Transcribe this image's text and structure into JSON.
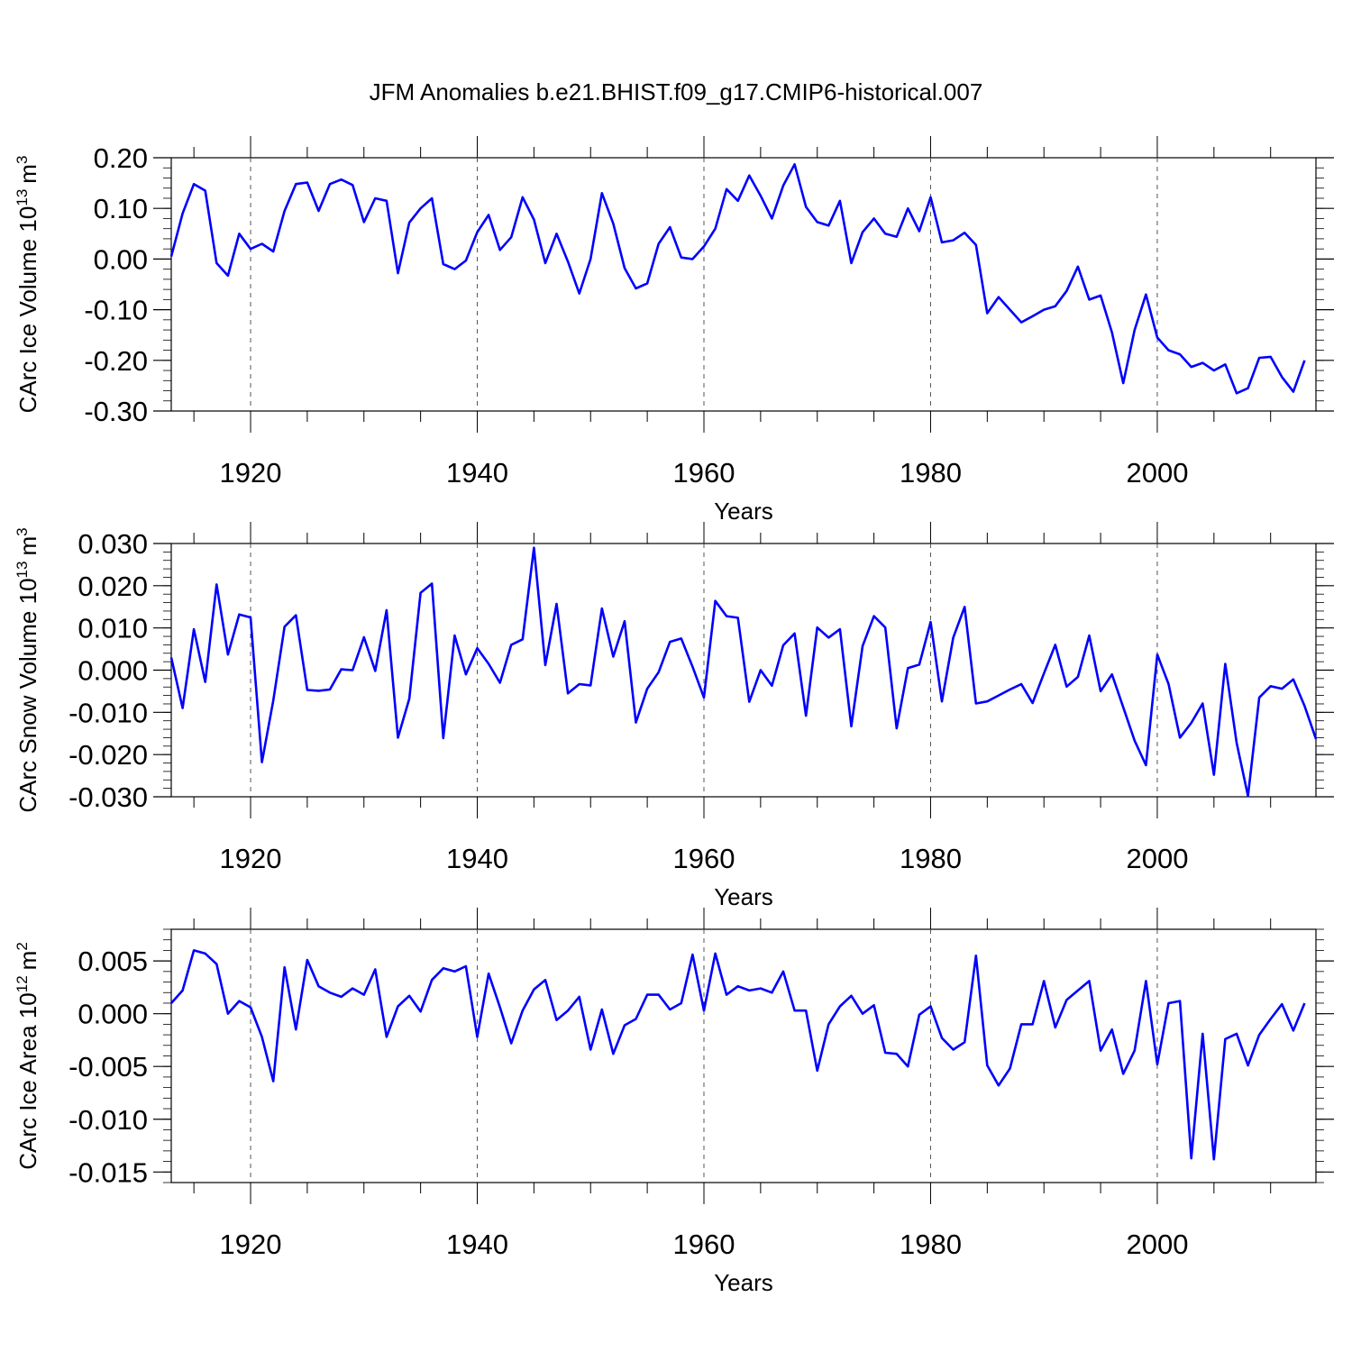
{
  "figure": {
    "title": "JFM Anomalies b.e21.BHIST.f09_g17.CMIP6-historical.007"
  },
  "chart_data": [
    {
      "type": "line",
      "title": "JFM Anomalies b.e21.BHIST.f09_g17.CMIP6-historical.007",
      "xlabel": "Years",
      "ylabel_main": "CArc Ice Volume 10",
      "ylabel_exp": "13",
      "ylabel_unit": "m",
      "ylabel_unit_exp": "3",
      "xlim": [
        1913,
        2014
      ],
      "ylim": [
        -0.3,
        0.2
      ],
      "xticks": [
        1920,
        1940,
        1960,
        1980,
        2000
      ],
      "xtick_labels": [
        "1920",
        "1940",
        "1960",
        "1980",
        "2000"
      ],
      "yticks": [
        0.2,
        0.1,
        0.0,
        -0.1,
        -0.2,
        -0.3
      ],
      "ytick_labels": [
        "0.20",
        "0.10",
        "0.00",
        "-0.10",
        "-0.20",
        "-0.30"
      ],
      "y_minor_step": 0.02,
      "line_color": "#0000ff",
      "x_start": 1913,
      "values": [
        0.005,
        0.09,
        0.148,
        0.135,
        -0.008,
        -0.033,
        0.05,
        0.02,
        0.03,
        0.015,
        0.095,
        0.148,
        0.151,
        0.095,
        0.148,
        0.157,
        0.146,
        0.073,
        0.12,
        0.115,
        -0.028,
        0.072,
        0.1,
        0.12,
        -0.01,
        -0.02,
        -0.003,
        0.053,
        0.087,
        0.018,
        0.043,
        0.122,
        0.078,
        -0.008,
        0.05,
        -0.005,
        -0.068,
        0.0,
        0.13,
        0.07,
        -0.018,
        -0.058,
        -0.048,
        0.03,
        0.063,
        0.003,
        0.0,
        0.025,
        0.06,
        0.138,
        0.115,
        0.165,
        0.125,
        0.08,
        0.145,
        0.187,
        0.103,
        0.073,
        0.066,
        0.115,
        -0.008,
        0.053,
        0.08,
        0.05,
        0.044,
        0.1,
        0.055,
        0.122,
        0.033,
        0.037,
        0.052,
        0.028,
        -0.107,
        -0.075,
        -0.1,
        -0.125,
        -0.113,
        -0.1,
        -0.093,
        -0.063,
        -0.015,
        -0.08,
        -0.072,
        -0.145,
        -0.245,
        -0.14,
        -0.07,
        -0.155,
        -0.18,
        -0.188,
        -0.213,
        -0.205,
        -0.22,
        -0.208,
        -0.265,
        -0.255,
        -0.195,
        -0.193,
        -0.233,
        -0.262,
        -0.2
      ]
    },
    {
      "type": "line",
      "xlabel": "Years",
      "ylabel_main": "CArc Snow Volume 10",
      "ylabel_exp": "13",
      "ylabel_unit": "m",
      "ylabel_unit_exp": "3",
      "xlim": [
        1913,
        2014
      ],
      "ylim": [
        -0.03,
        0.03
      ],
      "xticks": [
        1920,
        1940,
        1960,
        1980,
        2000
      ],
      "xtick_labels": [
        "1920",
        "1940",
        "1960",
        "1980",
        "2000"
      ],
      "yticks": [
        0.03,
        0.02,
        0.01,
        0.0,
        -0.01,
        -0.02,
        -0.03
      ],
      "ytick_labels": [
        "0.030",
        "0.020",
        "0.010",
        "0.000",
        "-0.010",
        "-0.020",
        "-0.030"
      ],
      "y_minor_step": 0.002,
      "line_color": "#0000ff",
      "x_start": 1913,
      "values": [
        0.003,
        -0.009,
        0.0097,
        -0.0028,
        0.0203,
        0.0037,
        0.0132,
        0.0125,
        -0.0218,
        -0.0072,
        0.0103,
        0.013,
        -0.0047,
        -0.0049,
        -0.0046,
        0.0002,
        0.0,
        0.0078,
        -0.0002,
        0.0142,
        -0.016,
        -0.0068,
        0.0183,
        0.0205,
        -0.0161,
        0.0082,
        -0.001,
        0.0052,
        0.0015,
        -0.003,
        0.006,
        0.0073,
        0.029,
        0.0012,
        0.0157,
        -0.0055,
        -0.0033,
        -0.0036,
        0.0146,
        0.0032,
        0.0116,
        -0.0124,
        -0.0044,
        -0.0005,
        0.0067,
        0.0075,
        0.0008,
        -0.0065,
        0.0164,
        0.0128,
        0.0124,
        -0.0075,
        0.0,
        -0.0037,
        0.0059,
        0.0087,
        -0.0108,
        0.0101,
        0.0077,
        0.0097,
        -0.0133,
        0.0057,
        0.0128,
        0.0101,
        -0.0138,
        0.0005,
        0.0013,
        0.0114,
        -0.0074,
        0.0077,
        0.015,
        -0.0079,
        -0.0074,
        -0.006,
        -0.0046,
        -0.0033,
        -0.0078,
        -0.0008,
        0.006,
        -0.0039,
        -0.0016,
        0.0082,
        -0.005,
        -0.001,
        -0.0088,
        -0.0167,
        -0.0225,
        0.0037,
        -0.0033,
        -0.016,
        -0.0125,
        -0.0079,
        -0.0248,
        0.0015,
        -0.0172,
        -0.0298,
        -0.0065,
        -0.0038,
        -0.0044,
        -0.0022,
        -0.0085,
        -0.0163
      ]
    },
    {
      "type": "line",
      "xlabel": "Years",
      "ylabel_main": "CArc Ice Area 10",
      "ylabel_exp": "12",
      "ylabel_unit": "m",
      "ylabel_unit_exp": "2",
      "xlim": [
        1913,
        2014
      ],
      "ylim": [
        -0.016,
        0.008
      ],
      "xticks": [
        1920,
        1940,
        1960,
        1980,
        2000
      ],
      "xtick_labels": [
        "1920",
        "1940",
        "1960",
        "1980",
        "2000"
      ],
      "yticks": [
        0.005,
        0.0,
        -0.005,
        -0.01,
        -0.015
      ],
      "ytick_labels": [
        "0.005",
        "0.000",
        "-0.005",
        "-0.010",
        "-0.015"
      ],
      "y_minor_step": 0.001,
      "line_color": "#0000ff",
      "x_start": 1913,
      "values": [
        0.001,
        0.0022,
        0.006,
        0.0057,
        0.0047,
        0.0,
        0.0012,
        0.0006,
        -0.0022,
        -0.0064,
        0.0044,
        -0.0015,
        0.0051,
        0.0026,
        0.002,
        0.0016,
        0.0024,
        0.0018,
        0.0042,
        -0.0022,
        0.0007,
        0.0017,
        0.0002,
        0.0032,
        0.0043,
        0.004,
        0.0045,
        -0.0022,
        0.0038,
        0.0006,
        -0.0028,
        0.0003,
        0.0023,
        0.0032,
        -0.0006,
        0.0003,
        0.0016,
        -0.0034,
        0.0004,
        -0.0038,
        -0.0011,
        -0.0005,
        0.0018,
        0.0018,
        0.0004,
        0.001,
        0.0056,
        0.0003,
        0.0057,
        0.0018,
        0.0026,
        0.0022,
        0.0024,
        0.002,
        0.004,
        0.0003,
        0.0003,
        -0.0054,
        -0.001,
        0.0007,
        0.0017,
        0.0,
        0.0008,
        -0.0037,
        -0.0038,
        -0.005,
        -0.0001,
        0.0007,
        -0.0023,
        -0.0034,
        -0.0027,
        0.0055,
        -0.0049,
        -0.0068,
        -0.0052,
        -0.001,
        -0.001,
        0.0031,
        -0.0013,
        0.0013,
        0.0022,
        0.0031,
        -0.0035,
        -0.0015,
        -0.0057,
        -0.0035,
        0.0031,
        -0.0048,
        0.001,
        0.0012,
        -0.0137,
        -0.0019,
        -0.0138,
        -0.0024,
        -0.0019,
        -0.0049,
        -0.002,
        -0.0005,
        0.0009,
        -0.0016,
        0.001
      ]
    }
  ]
}
